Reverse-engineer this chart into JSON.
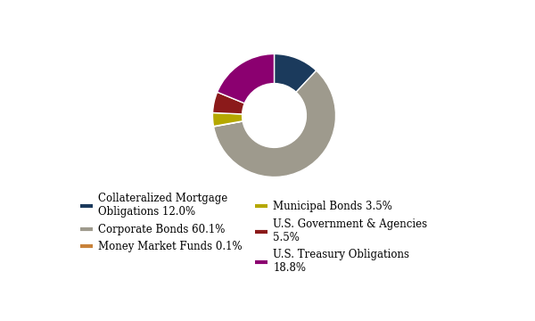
{
  "values": [
    12.0,
    60.1,
    0.1,
    3.5,
    5.5,
    18.8
  ],
  "colors": [
    "#1b3a5c",
    "#9e9a8d",
    "#c8823a",
    "#b5a800",
    "#8b1a1a",
    "#8b0070"
  ],
  "legend_col1": [
    [
      "Collateralized Mortgage\nObligations 12.0%",
      "#1b3a5c"
    ],
    [
      "Money Market Funds 0.1%",
      "#c8823a"
    ],
    [
      "U.S. Government & Agencies\n5.5%",
      "#8b1a1a"
    ]
  ],
  "legend_col2": [
    [
      "Corporate Bonds 60.1%",
      "#9e9a8d"
    ],
    [
      "Municipal Bonds 3.5%",
      "#b5a800"
    ],
    [
      "U.S. Treasury Obligations\n18.8%",
      "#8b0070"
    ]
  ],
  "background_color": "#ffffff",
  "wedge_edge_color": "#ffffff",
  "startangle": 90,
  "donut_width": 0.48,
  "legend_fontsize": 8.5
}
